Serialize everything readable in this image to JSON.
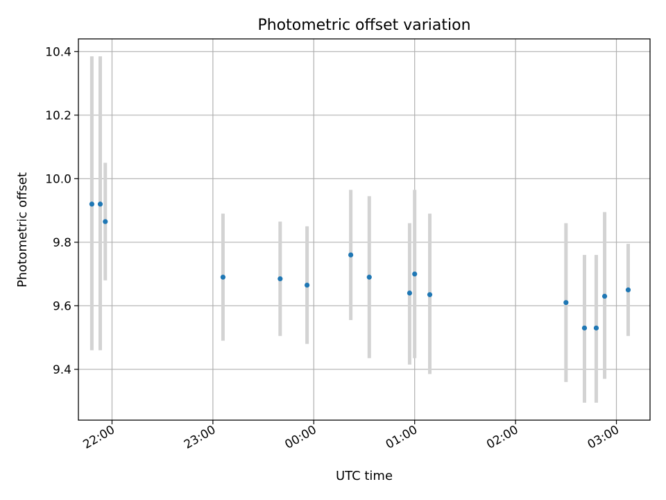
{
  "chart_data": {
    "type": "scatter",
    "title": "Photometric offset variation",
    "xlabel": "UTC time",
    "ylabel": "Photometric offset",
    "x_type": "time",
    "xlim": [
      "21:40",
      "03:20"
    ],
    "ylim": [
      9.24,
      10.44
    ],
    "grid": true,
    "x_ticks": [
      "22:00",
      "23:00",
      "00:00",
      "01:00",
      "02:00",
      "03:00"
    ],
    "y_ticks": [
      9.4,
      9.6,
      9.8,
      10.0,
      10.2,
      10.4
    ],
    "point_color": "#1f77b4",
    "errorbar_color": "#d3d3d3",
    "points": [
      {
        "x": "21:48",
        "y": 9.92,
        "err_low": 9.46,
        "err_high": 10.385
      },
      {
        "x": "21:53",
        "y": 9.92,
        "err_low": 9.46,
        "err_high": 10.385
      },
      {
        "x": "21:56",
        "y": 9.865,
        "err_low": 9.68,
        "err_high": 10.05
      },
      {
        "x": "23:06",
        "y": 9.69,
        "err_low": 9.49,
        "err_high": 9.89
      },
      {
        "x": "23:40",
        "y": 9.685,
        "err_low": 9.505,
        "err_high": 9.865
      },
      {
        "x": "23:56",
        "y": 9.665,
        "err_low": 9.48,
        "err_high": 9.85
      },
      {
        "x": "00:22",
        "y": 9.76,
        "err_low": 9.555,
        "err_high": 9.965
      },
      {
        "x": "00:33",
        "y": 9.69,
        "err_low": 9.435,
        "err_high": 9.945
      },
      {
        "x": "00:57",
        "y": 9.64,
        "err_low": 9.415,
        "err_high": 9.86
      },
      {
        "x": "01:00",
        "y": 9.7,
        "err_low": 9.435,
        "err_high": 9.965
      },
      {
        "x": "01:09",
        "y": 9.635,
        "err_low": 9.385,
        "err_high": 9.89
      },
      {
        "x": "02:30",
        "y": 9.61,
        "err_low": 9.36,
        "err_high": 9.86
      },
      {
        "x": "02:41",
        "y": 9.53,
        "err_low": 9.295,
        "err_high": 9.76
      },
      {
        "x": "02:48",
        "y": 9.53,
        "err_low": 9.295,
        "err_high": 9.76
      },
      {
        "x": "02:53",
        "y": 9.63,
        "err_low": 9.37,
        "err_high": 9.895
      },
      {
        "x": "03:07",
        "y": 9.65,
        "err_low": 9.505,
        "err_high": 9.795
      }
    ]
  }
}
